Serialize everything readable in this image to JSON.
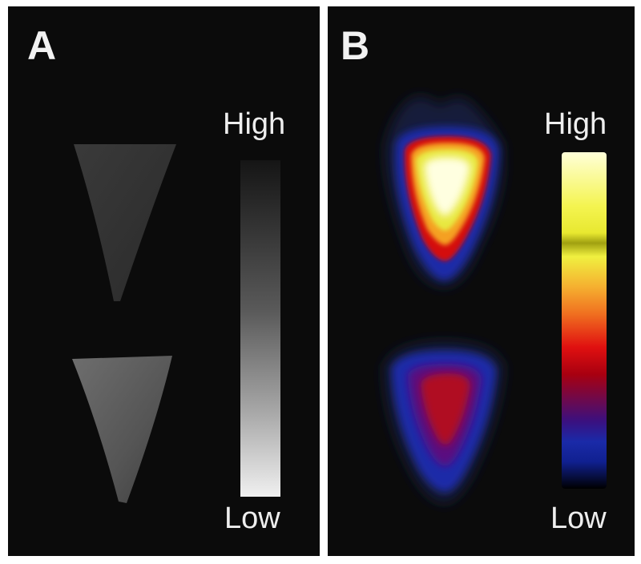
{
  "panels": [
    {
      "label": "A",
      "scale_high": "High",
      "scale_low": "Low"
    },
    {
      "label": "B",
      "scale_high": "High",
      "scale_low": "Low"
    }
  ],
  "colors": {
    "background": "#0b0b0b",
    "gray_low": "#f0f0f0",
    "gray_high": "#151515",
    "heat_low": "#000000",
    "heat_blue": "#1a2aa8",
    "heat_purple": "#4a1070",
    "heat_red": "#d40a10",
    "heat_orange": "#f5a020",
    "heat_olive": "#a0a010",
    "heat_yellow": "#f0f030",
    "heat_high": "#ffffe0"
  }
}
